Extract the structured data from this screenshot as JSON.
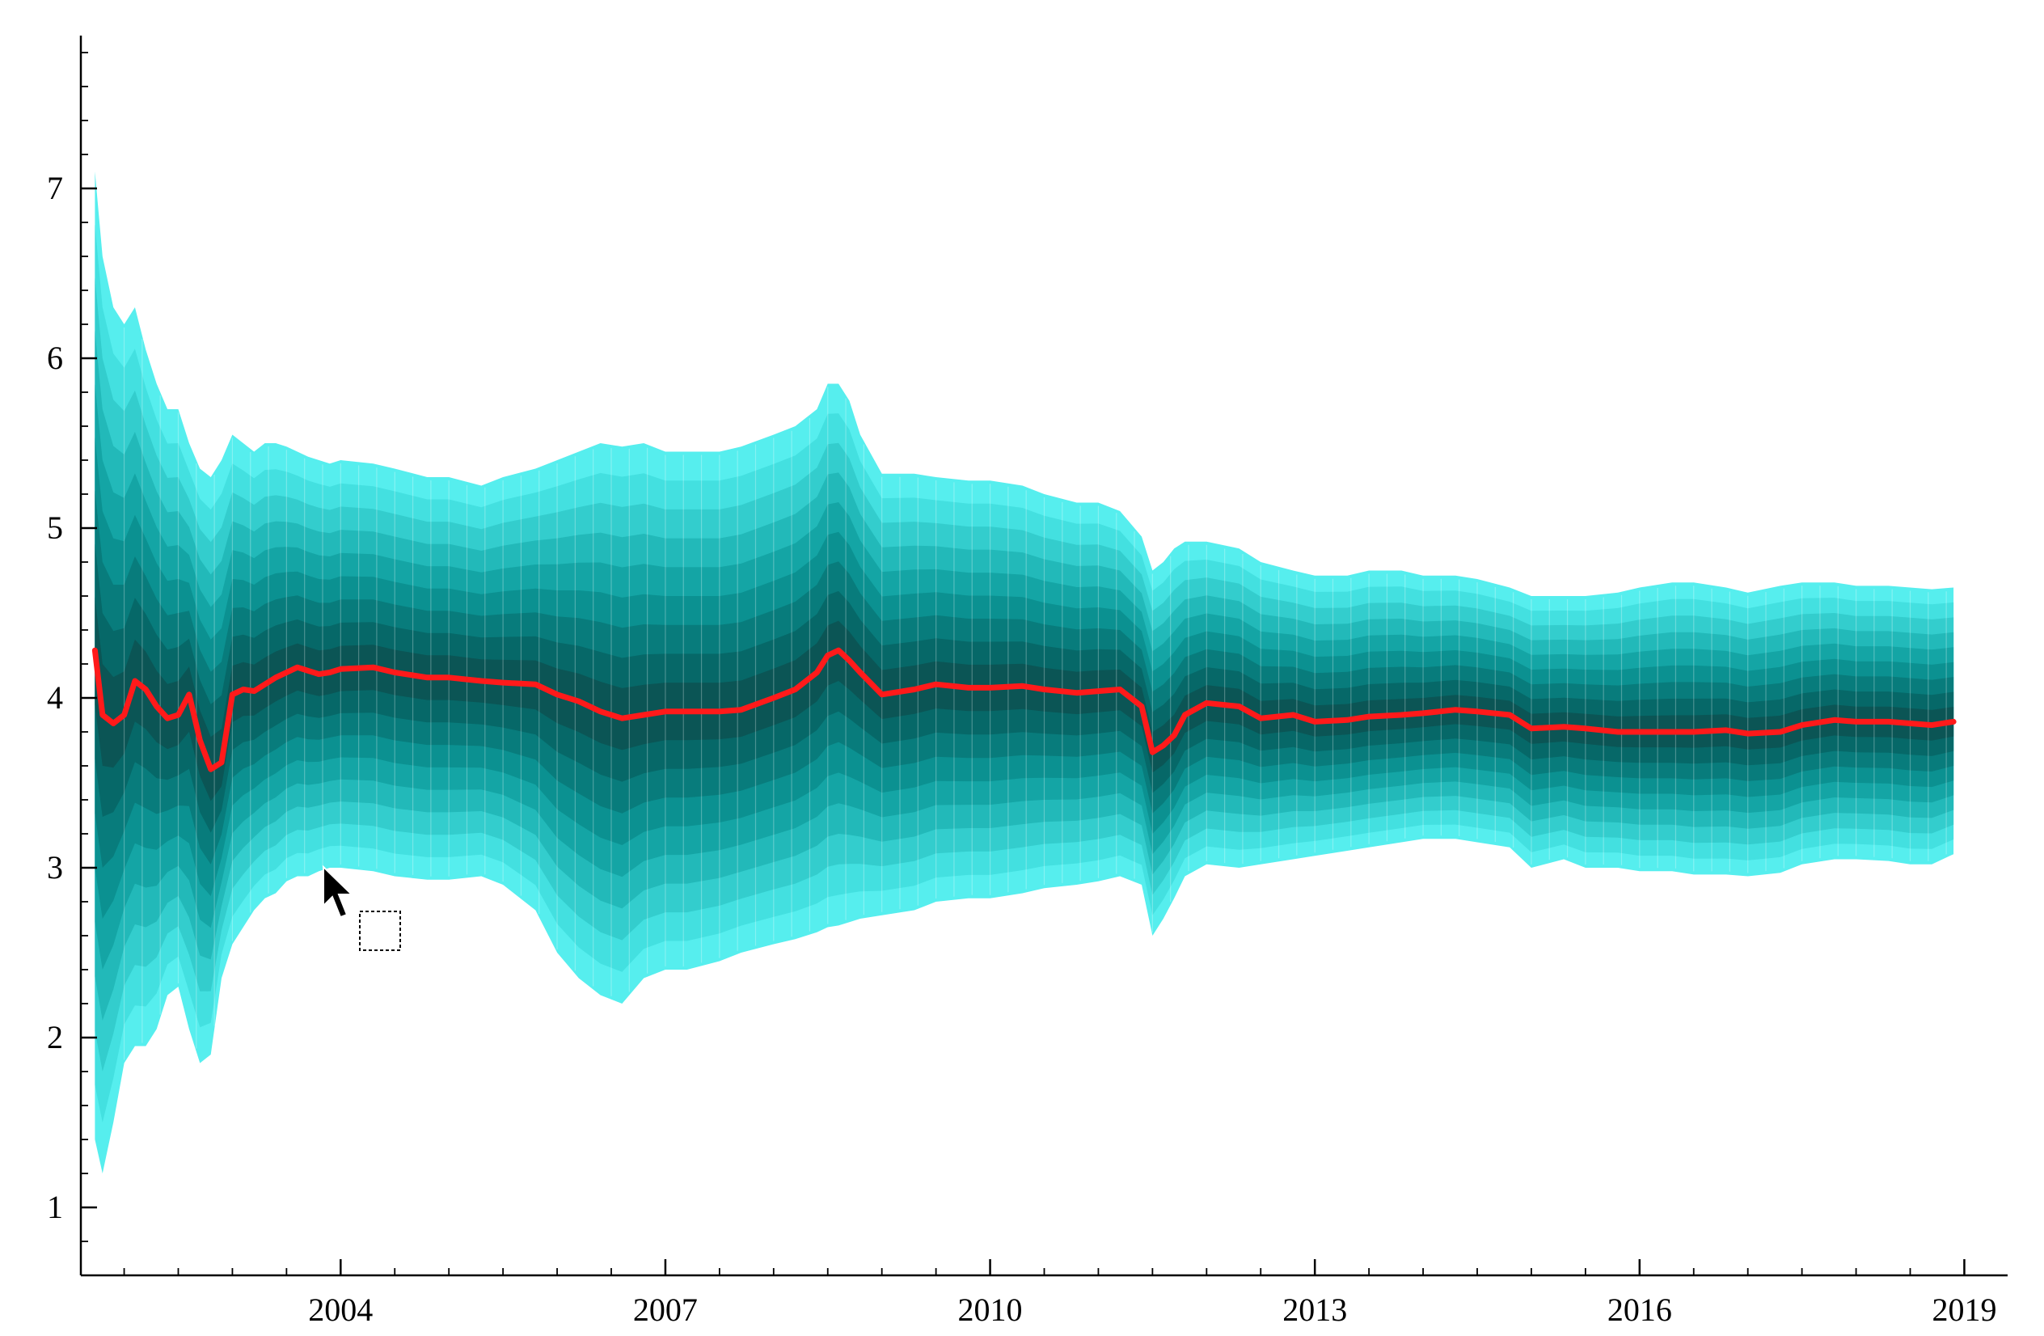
{
  "chart_data": {
    "type": "area",
    "title": "",
    "xlabel": "",
    "ylabel": "",
    "xlim": [
      2001.6,
      2019.4
    ],
    "ylim": [
      0.6,
      7.9
    ],
    "x_ticks": [
      2004,
      2007,
      2010,
      2013,
      2016,
      2019
    ],
    "y_ticks": [
      1,
      2,
      3,
      4,
      5,
      6,
      7
    ],
    "grid": false,
    "legend": "none",
    "band_colors": [
      "#56eeee",
      "#43e0e0",
      "#33cdcd",
      "#22b9b9",
      "#14a5a5",
      "#0b9191",
      "#087c7c",
      "#066868",
      "#0b5555"
    ],
    "median_color": "#ff1a1a",
    "series": [
      {
        "x": [
          2001.73,
          2001.8,
          2001.9,
          2002.0,
          2002.1,
          2002.2,
          2002.3,
          2002.4,
          2002.5,
          2002.6,
          2002.7,
          2002.8,
          2002.9,
          2003.0,
          2003.1,
          2003.2,
          2003.3,
          2003.4,
          2003.5,
          2003.6,
          2003.7,
          2003.8,
          2003.9,
          2004.0,
          2004.3,
          2004.5,
          2004.8,
          2005.0,
          2005.3,
          2005.5,
          2005.8,
          2006.0,
          2006.2,
          2006.4,
          2006.6,
          2006.8,
          2007.0,
          2007.2,
          2007.5,
          2007.7,
          2008.0,
          2008.2,
          2008.4,
          2008.5,
          2008.6,
          2008.7,
          2008.8,
          2009.0,
          2009.3,
          2009.5,
          2009.8,
          2010.0,
          2010.3,
          2010.5,
          2010.8,
          2011.0,
          2011.2,
          2011.4,
          2011.5,
          2011.6,
          2011.7,
          2011.8,
          2012.0,
          2012.3,
          2012.5,
          2012.8,
          2013.0,
          2013.3,
          2013.5,
          2013.8,
          2014.0,
          2014.3,
          2014.5,
          2014.8,
          2015.0,
          2015.3,
          2015.5,
          2015.8,
          2016.0,
          2016.3,
          2016.5,
          2016.8,
          2017.0,
          2017.3,
          2017.5,
          2017.8,
          2018.0,
          2018.3,
          2018.5,
          2018.7,
          2018.9
        ],
        "median": [
          4.28,
          3.9,
          3.85,
          3.9,
          4.1,
          4.05,
          3.95,
          3.88,
          3.9,
          4.02,
          3.75,
          3.58,
          3.62,
          4.02,
          4.05,
          4.04,
          4.08,
          4.12,
          4.15,
          4.18,
          4.16,
          4.14,
          4.15,
          4.17,
          4.18,
          4.15,
          4.12,
          4.12,
          4.1,
          4.09,
          4.08,
          4.02,
          3.98,
          3.92,
          3.88,
          3.9,
          3.92,
          3.92,
          3.92,
          3.93,
          4.0,
          4.05,
          4.15,
          4.25,
          4.28,
          4.22,
          4.15,
          4.02,
          4.05,
          4.08,
          4.06,
          4.06,
          4.07,
          4.05,
          4.03,
          4.04,
          4.05,
          3.95,
          3.68,
          3.72,
          3.78,
          3.9,
          3.97,
          3.95,
          3.88,
          3.9,
          3.86,
          3.87,
          3.89,
          3.9,
          3.91,
          3.93,
          3.92,
          3.9,
          3.82,
          3.83,
          3.82,
          3.8,
          3.8,
          3.8,
          3.8,
          3.81,
          3.79,
          3.8,
          3.84,
          3.87,
          3.86,
          3.86,
          3.85,
          3.84,
          3.86
        ],
        "upper": [
          7.1,
          6.6,
          6.3,
          6.2,
          6.3,
          6.05,
          5.85,
          5.7,
          5.7,
          5.5,
          5.35,
          5.3,
          5.4,
          5.55,
          5.5,
          5.45,
          5.5,
          5.5,
          5.48,
          5.45,
          5.42,
          5.4,
          5.38,
          5.4,
          5.38,
          5.35,
          5.3,
          5.3,
          5.25,
          5.3,
          5.35,
          5.4,
          5.45,
          5.5,
          5.48,
          5.5,
          5.45,
          5.45,
          5.45,
          5.48,
          5.55,
          5.6,
          5.7,
          5.85,
          5.85,
          5.75,
          5.55,
          5.32,
          5.32,
          5.3,
          5.28,
          5.28,
          5.25,
          5.2,
          5.15,
          5.15,
          5.1,
          4.95,
          4.75,
          4.8,
          4.88,
          4.92,
          4.92,
          4.88,
          4.8,
          4.75,
          4.72,
          4.72,
          4.75,
          4.75,
          4.72,
          4.72,
          4.7,
          4.65,
          4.6,
          4.6,
          4.6,
          4.62,
          4.65,
          4.68,
          4.68,
          4.65,
          4.62,
          4.66,
          4.68,
          4.68,
          4.66,
          4.66,
          4.65,
          4.64,
          4.65
        ],
        "lower": [
          1.4,
          1.2,
          1.5,
          1.85,
          1.95,
          1.95,
          2.05,
          2.25,
          2.3,
          2.05,
          1.85,
          1.9,
          2.35,
          2.55,
          2.65,
          2.75,
          2.82,
          2.85,
          2.92,
          2.95,
          2.95,
          2.98,
          3.0,
          3.0,
          2.98,
          2.95,
          2.93,
          2.93,
          2.95,
          2.9,
          2.75,
          2.5,
          2.35,
          2.25,
          2.2,
          2.35,
          2.4,
          2.4,
          2.45,
          2.5,
          2.55,
          2.58,
          2.62,
          2.65,
          2.66,
          2.68,
          2.7,
          2.72,
          2.75,
          2.8,
          2.82,
          2.82,
          2.85,
          2.88,
          2.9,
          2.92,
          2.95,
          2.9,
          2.6,
          2.7,
          2.82,
          2.95,
          3.02,
          3.0,
          3.02,
          3.05,
          3.07,
          3.1,
          3.12,
          3.15,
          3.17,
          3.17,
          3.15,
          3.12,
          3.0,
          3.05,
          3.0,
          3.0,
          2.98,
          2.98,
          2.96,
          2.96,
          2.95,
          2.97,
          3.02,
          3.05,
          3.05,
          3.04,
          3.02,
          3.02,
          3.08
        ]
      }
    ]
  }
}
